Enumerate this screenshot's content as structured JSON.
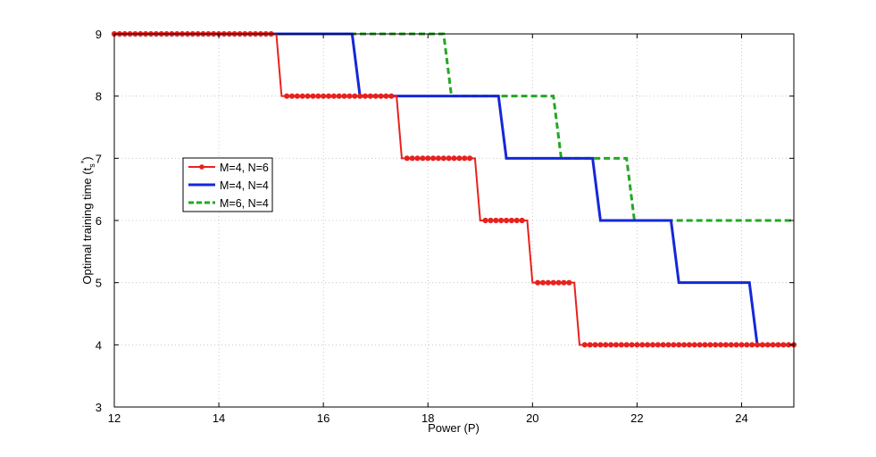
{
  "chart_data": {
    "type": "line",
    "xlabel": "Power (P)",
    "ylabel": "Optimal training time (t",
    "ylabel_sub": "s",
    "ylabel_sup": "*",
    "ylabel_close": ")",
    "xlim": [
      12,
      25
    ],
    "ylim": [
      3,
      9
    ],
    "xticks": [
      12,
      14,
      16,
      18,
      20,
      22,
      24
    ],
    "yticks": [
      3,
      4,
      5,
      6,
      7,
      8,
      9
    ],
    "grid": true,
    "legend_position": "left",
    "series": [
      {
        "name": "M=4, N=6",
        "color": "#e8211f",
        "style": "solid-dotted-markers",
        "x": [
          12,
          15.1,
          15.2,
          17.4,
          17.5,
          18.9,
          19.0,
          19.9,
          20.0,
          20.8,
          20.9,
          25
        ],
        "y": [
          9,
          9,
          8,
          8,
          7,
          7,
          6,
          6,
          5,
          5,
          4,
          4
        ]
      },
      {
        "name": "M=4, N=4",
        "color": "#1428d8",
        "style": "solid-thick",
        "x": [
          12,
          16.55,
          16.7,
          19.35,
          19.5,
          21.15,
          21.3,
          22.65,
          22.8,
          24.15,
          24.3,
          25
        ],
        "y": [
          9,
          9,
          8,
          8,
          7,
          7,
          6,
          6,
          5,
          5,
          4,
          4
        ]
      },
      {
        "name": "M=6, N=4",
        "color": "#22a822",
        "style": "dashed",
        "x": [
          12,
          18.3,
          18.45,
          20.4,
          20.55,
          21.8,
          21.95,
          25
        ],
        "y": [
          9,
          9,
          8,
          8,
          7,
          7,
          6,
          6
        ]
      }
    ],
    "markers": {
      "series": "M=4, N=6",
      "x_start": 12,
      "x_end": 25,
      "step": 0.1,
      "skip_near_steps": [
        15.15,
        17.45,
        18.95,
        19.95,
        20.85
      ]
    }
  }
}
